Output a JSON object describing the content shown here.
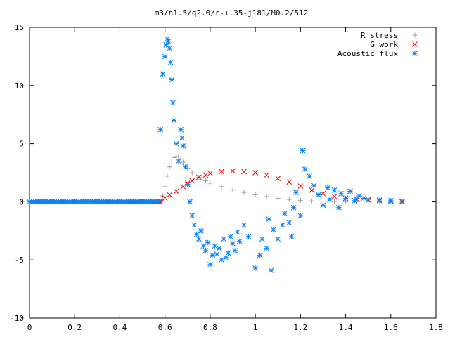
{
  "chart_data": {
    "type": "scatter",
    "title": "m3/n1.5/q2.0/r-+.35-j181/M0.2/512",
    "xlabel": "",
    "ylabel": "",
    "xlim": [
      0,
      1.8
    ],
    "ylim": [
      -10,
      15
    ],
    "x_ticks": [
      "0",
      "0.2",
      "0.4",
      "0.6",
      "0.8",
      "1",
      "1.2",
      "1.4",
      "1.6",
      "1.8"
    ],
    "y_ticks": [
      "15",
      "10",
      "5",
      "0",
      "-5",
      "-10"
    ],
    "grid": false,
    "legend_position": "top-right",
    "series": [
      {
        "name": "R stress",
        "marker": "plus",
        "color": "#a0a0a0",
        "points": [
          [
            0.58,
            0.0
          ],
          [
            0.59,
            0.5
          ],
          [
            0.6,
            1.3
          ],
          [
            0.61,
            2.2
          ],
          [
            0.62,
            3.0
          ],
          [
            0.63,
            3.5
          ],
          [
            0.64,
            3.8
          ],
          [
            0.65,
            3.9
          ],
          [
            0.66,
            3.85
          ],
          [
            0.67,
            3.7
          ],
          [
            0.68,
            3.4
          ],
          [
            0.7,
            2.9
          ],
          [
            0.72,
            2.5
          ],
          [
            0.75,
            2.1
          ],
          [
            0.78,
            1.8
          ],
          [
            0.8,
            1.6
          ],
          [
            0.85,
            1.3
          ],
          [
            0.9,
            1.0
          ],
          [
            0.95,
            0.8
          ],
          [
            1.0,
            0.6
          ],
          [
            1.05,
            0.45
          ],
          [
            1.1,
            0.3
          ],
          [
            1.15,
            0.2
          ],
          [
            1.2,
            0.12
          ],
          [
            1.25,
            0.08
          ],
          [
            1.3,
            0.05
          ],
          [
            1.35,
            0.02
          ],
          [
            1.4,
            0.0
          ],
          [
            1.45,
            0.0
          ],
          [
            1.5,
            0.0
          ],
          [
            1.55,
            0.0
          ],
          [
            1.6,
            0.0
          ],
          [
            1.65,
            0.0
          ]
        ]
      },
      {
        "name": "G work",
        "marker": "cross",
        "color": "#ff0000",
        "points": [
          [
            0.58,
            0.0
          ],
          [
            0.6,
            0.3
          ],
          [
            0.62,
            0.6
          ],
          [
            0.65,
            0.9
          ],
          [
            0.68,
            1.3
          ],
          [
            0.7,
            1.6
          ],
          [
            0.72,
            1.8
          ],
          [
            0.75,
            2.1
          ],
          [
            0.78,
            2.3
          ],
          [
            0.8,
            2.45
          ],
          [
            0.85,
            2.6
          ],
          [
            0.9,
            2.65
          ],
          [
            0.95,
            2.6
          ],
          [
            1.0,
            2.5
          ],
          [
            1.05,
            2.3
          ],
          [
            1.1,
            2.0
          ],
          [
            1.15,
            1.7
          ],
          [
            1.2,
            1.35
          ],
          [
            1.25,
            1.0
          ],
          [
            1.3,
            0.7
          ],
          [
            1.35,
            0.45
          ],
          [
            1.4,
            0.3
          ],
          [
            1.45,
            0.2
          ],
          [
            1.5,
            0.15
          ],
          [
            1.55,
            0.1
          ],
          [
            1.6,
            0.05
          ],
          [
            1.65,
            0.0
          ]
        ]
      },
      {
        "name": "Acoustic flux",
        "marker": "star",
        "color": "#0080ff",
        "points": [
          [
            0.58,
            6.2
          ],
          [
            0.59,
            11.0
          ],
          [
            0.6,
            12.5
          ],
          [
            0.605,
            13.5
          ],
          [
            0.61,
            14.0
          ],
          [
            0.615,
            13.8
          ],
          [
            0.62,
            13.2
          ],
          [
            0.625,
            12.0
          ],
          [
            0.63,
            10.5
          ],
          [
            0.635,
            8.5
          ],
          [
            0.64,
            7.0
          ],
          [
            0.65,
            5.0
          ],
          [
            0.66,
            3.5
          ],
          [
            0.67,
            6.2
          ],
          [
            0.675,
            5.5
          ],
          [
            0.68,
            4.8
          ],
          [
            0.69,
            3.0
          ],
          [
            0.7,
            1.5
          ],
          [
            0.71,
            0.0
          ],
          [
            0.72,
            -1.2
          ],
          [
            0.73,
            -2.0
          ],
          [
            0.74,
            -2.8
          ],
          [
            0.75,
            -3.2
          ],
          [
            0.76,
            -2.5
          ],
          [
            0.77,
            -3.8
          ],
          [
            0.78,
            -4.2
          ],
          [
            0.79,
            -3.5
          ],
          [
            0.8,
            -5.4
          ],
          [
            0.81,
            -4.6
          ],
          [
            0.82,
            -3.8
          ],
          [
            0.83,
            -4.5
          ],
          [
            0.84,
            -4.0
          ],
          [
            0.85,
            -5.0
          ],
          [
            0.86,
            -3.2
          ],
          [
            0.87,
            -4.8
          ],
          [
            0.88,
            -4.4
          ],
          [
            0.89,
            -3.0
          ],
          [
            0.9,
            -3.6
          ],
          [
            0.91,
            -4.2
          ],
          [
            0.92,
            -2.6
          ],
          [
            0.93,
            -3.4
          ],
          [
            0.95,
            -2.0
          ],
          [
            0.97,
            -3.0
          ],
          [
            1.0,
            -5.7
          ],
          [
            1.02,
            -4.6
          ],
          [
            1.03,
            -3.2
          ],
          [
            1.05,
            -4.0
          ],
          [
            1.06,
            -1.5
          ],
          [
            1.07,
            -5.9
          ],
          [
            1.08,
            -2.4
          ],
          [
            1.1,
            -3.2
          ],
          [
            1.12,
            -2.0
          ],
          [
            1.13,
            -1.0
          ],
          [
            1.15,
            -1.8
          ],
          [
            1.16,
            -3.0
          ],
          [
            1.17,
            -0.5
          ],
          [
            1.18,
            0.8
          ],
          [
            1.2,
            -1.2
          ],
          [
            1.21,
            4.4
          ],
          [
            1.22,
            2.8
          ],
          [
            1.24,
            2.2
          ],
          [
            1.26,
            1.4
          ],
          [
            1.28,
            0.6
          ],
          [
            1.3,
            -0.3
          ],
          [
            1.32,
            1.2
          ],
          [
            1.33,
            0.2
          ],
          [
            1.35,
            1.0
          ],
          [
            1.37,
            -0.5
          ],
          [
            1.38,
            0.7
          ],
          [
            1.4,
            0.3
          ],
          [
            1.42,
            0.9
          ],
          [
            1.44,
            0.1
          ],
          [
            1.46,
            0.5
          ],
          [
            1.48,
            0.3
          ],
          [
            1.5,
            0.2
          ],
          [
            1.55,
            0.15
          ],
          [
            1.6,
            0.1
          ],
          [
            1.65,
            0.05
          ]
        ],
        "baseline_points": [
          [
            0,
            0
          ],
          [
            0.05,
            0
          ],
          [
            0.1,
            0
          ],
          [
            0.15,
            0
          ],
          [
            0.2,
            0
          ],
          [
            0.25,
            0
          ],
          [
            0.3,
            0
          ],
          [
            0.35,
            0
          ],
          [
            0.4,
            0
          ],
          [
            0.45,
            0
          ],
          [
            0.5,
            0
          ],
          [
            0.55,
            0
          ],
          [
            0.575,
            0
          ]
        ]
      }
    ]
  }
}
